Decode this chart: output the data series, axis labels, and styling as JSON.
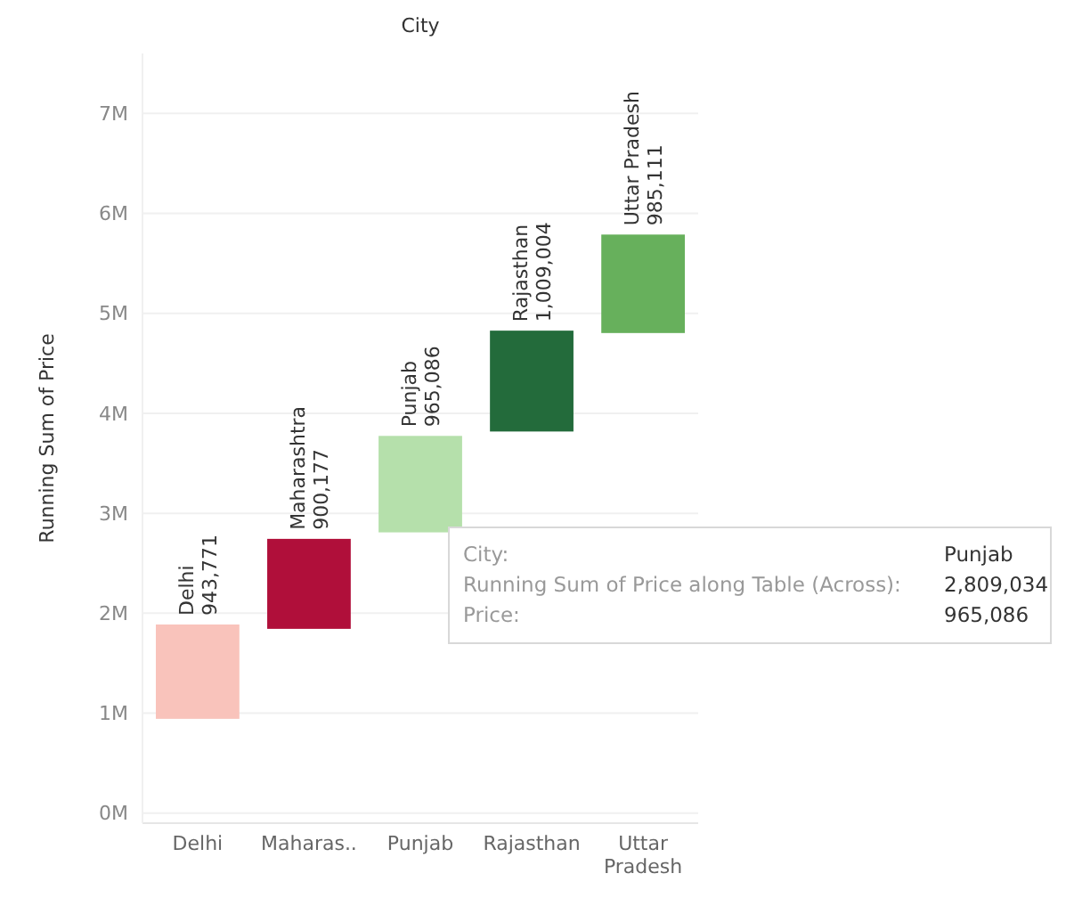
{
  "chart_data": {
    "type": "bar",
    "xlabel": "City",
    "ylabel": "Running Sum of Price",
    "categories": [
      "Delhi",
      "Maharas..",
      "Punjab",
      "Rajasthan",
      "Uttar Pradesh"
    ],
    "base": [
      943771,
      1843948,
      2809034,
      3818038,
      4803149
    ],
    "values": [
      943771,
      900177,
      965086,
      1009004,
      985111
    ],
    "colors": [
      "#f9c3bb",
      "#b00f3a",
      "#b5e0ab",
      "#236b3b",
      "#67b05c"
    ],
    "value_labels": [
      "Delhi\n943,771",
      "Maharashtra\n900,177",
      "Punjab\n965,086",
      "Rajasthan\n1,009,004",
      "Uttar Pradesh\n985,111"
    ],
    "ylim": [
      -100000,
      7600000
    ],
    "yticks": [
      {
        "value": 0,
        "label": "0M"
      },
      {
        "value": 1000000,
        "label": "1M"
      },
      {
        "value": 2000000,
        "label": "2M"
      },
      {
        "value": 3000000,
        "label": "3M"
      },
      {
        "value": 4000000,
        "label": "4M"
      },
      {
        "value": 5000000,
        "label": "5M"
      },
      {
        "value": 6000000,
        "label": "6M"
      },
      {
        "value": 7000000,
        "label": "7M"
      }
    ],
    "grid": "y",
    "annotations": [
      "City:",
      "Punjab",
      "Running Sum of Price along Table (Across):",
      "2,809,034",
      "Price:",
      "965,086"
    ]
  }
}
